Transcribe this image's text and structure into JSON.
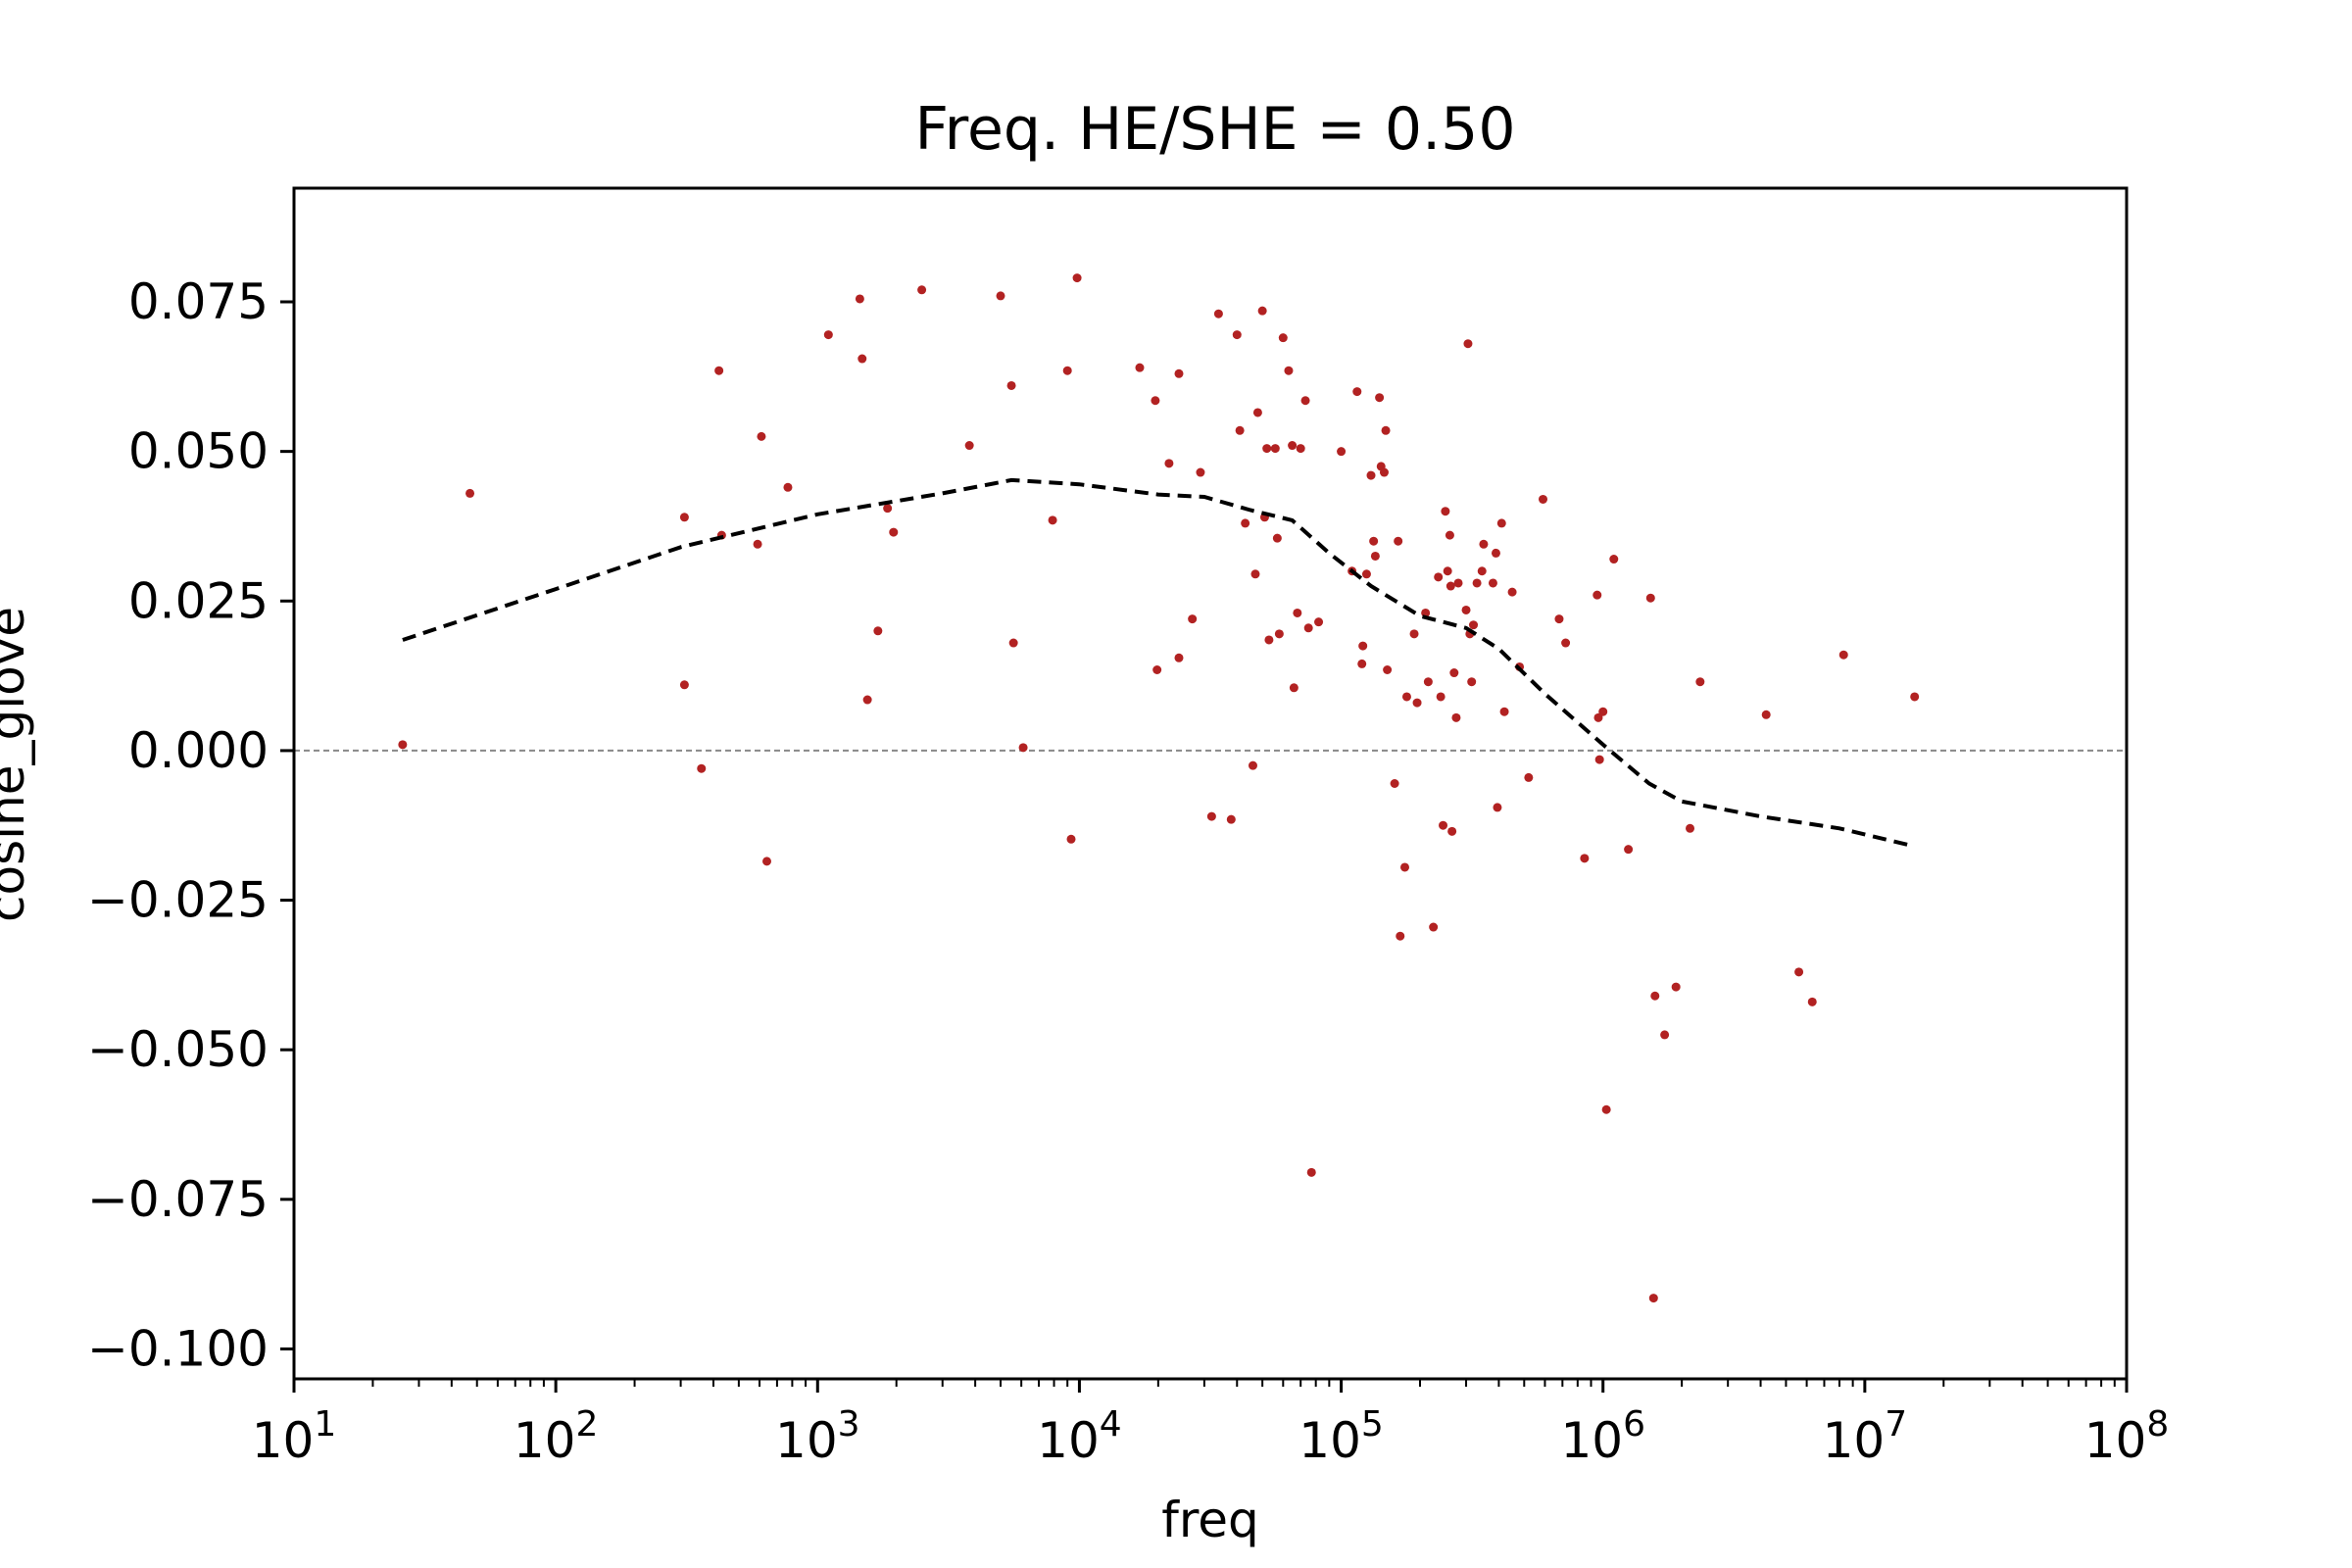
{
  "chart_data": {
    "type": "scatter",
    "title": "Freq. HE/SHE = 0.50",
    "xlabel": "freq",
    "ylabel": "cosine_glove",
    "xscale": "log",
    "xlim": [
      10,
      100000000
    ],
    "ylim": [
      -0.105,
      0.094
    ],
    "x_ticks": [
      {
        "value": 10,
        "base": "10",
        "exp": "1"
      },
      {
        "value": 100,
        "base": "10",
        "exp": "2"
      },
      {
        "value": 1000,
        "base": "10",
        "exp": "3"
      },
      {
        "value": 10000,
        "base": "10",
        "exp": "4"
      },
      {
        "value": 100000,
        "base": "10",
        "exp": "5"
      },
      {
        "value": 1000000,
        "base": "10",
        "exp": "6"
      },
      {
        "value": 10000000,
        "base": "10",
        "exp": "7"
      },
      {
        "value": 100000000,
        "base": "10",
        "exp": "8"
      }
    ],
    "y_ticks": [
      {
        "value": 0.075,
        "label": "0.075"
      },
      {
        "value": 0.05,
        "label": "0.050"
      },
      {
        "value": 0.025,
        "label": "0.025"
      },
      {
        "value": 0.0,
        "label": "0.000"
      },
      {
        "value": -0.025,
        "label": "−0.025"
      },
      {
        "value": -0.05,
        "label": "−0.050"
      },
      {
        "value": -0.075,
        "label": "−0.075"
      },
      {
        "value": -0.1,
        "label": "−0.100"
      }
    ],
    "reference_line": {
      "y": 0,
      "style": "dashed",
      "color": "#888888"
    },
    "series": [
      {
        "kind": "points",
        "color": "#b22222",
        "points": [
          [
            26,
            0.001
          ],
          [
            47,
            0.043
          ],
          [
            310,
            0.039
          ],
          [
            310,
            0.011
          ],
          [
            360,
            -0.003
          ],
          [
            420,
            0.0635
          ],
          [
            430,
            0.036
          ],
          [
            590,
            0.0345
          ],
          [
            610,
            0.0525
          ],
          [
            640,
            -0.0185
          ],
          [
            770,
            0.044
          ],
          [
            1100,
            0.0695
          ],
          [
            1450,
            0.0755
          ],
          [
            1480,
            0.0655
          ],
          [
            1550,
            0.0085
          ],
          [
            1700,
            0.02
          ],
          [
            1850,
            0.0405
          ],
          [
            1950,
            0.0365
          ],
          [
            2500,
            0.077
          ],
          [
            3800,
            0.051
          ],
          [
            5000,
            0.076
          ],
          [
            5500,
            0.061
          ],
          [
            5600,
            0.018
          ],
          [
            6100,
            0.0005
          ],
          [
            7900,
            0.0385
          ],
          [
            9000,
            0.0635
          ],
          [
            9300,
            -0.0148
          ],
          [
            9800,
            0.079
          ],
          [
            17000,
            0.064
          ],
          [
            19500,
            0.0585
          ],
          [
            19800,
            0.0135
          ],
          [
            22000,
            0.048
          ],
          [
            24000,
            0.063
          ],
          [
            24000,
            0.0155
          ],
          [
            27000,
            0.022
          ],
          [
            29000,
            0.0465
          ],
          [
            32000,
            -0.011
          ],
          [
            34000,
            0.073
          ],
          [
            38000,
            -0.0115
          ],
          [
            40000,
            0.0695
          ],
          [
            41000,
            0.0535
          ],
          [
            43000,
            0.038
          ],
          [
            46000,
            -0.0025
          ],
          [
            47000,
            0.0295
          ],
          [
            48000,
            0.0565
          ],
          [
            50000,
            0.0735
          ],
          [
            51000,
            0.039
          ],
          [
            52000,
            0.0505
          ],
          [
            53000,
            0.0185
          ],
          [
            56000,
            0.0505
          ],
          [
            57000,
            0.0355
          ],
          [
            58000,
            0.0195
          ],
          [
            60000,
            0.069
          ],
          [
            63000,
            0.0635
          ],
          [
            65000,
            0.051
          ],
          [
            66000,
            0.0105
          ],
          [
            68000,
            0.023
          ],
          [
            70000,
            0.0505
          ],
          [
            73000,
            0.0585
          ],
          [
            75000,
            0.0205
          ],
          [
            77000,
            -0.0705
          ],
          [
            82000,
            0.0215
          ],
          [
            100000,
            0.05
          ],
          [
            110000,
            0.03
          ],
          [
            115000,
            0.06
          ],
          [
            120000,
            0.0145
          ],
          [
            121000,
            0.0175
          ],
          [
            125000,
            0.0295
          ],
          [
            130000,
            0.046
          ],
          [
            133000,
            0.035
          ],
          [
            135000,
            0.0325
          ],
          [
            140000,
            0.059
          ],
          [
            142000,
            0.0475
          ],
          [
            146000,
            0.0465
          ],
          [
            148000,
            0.0535
          ],
          [
            150000,
            0.0135
          ],
          [
            160000,
            -0.0055
          ],
          [
            165000,
            0.035
          ],
          [
            168000,
            -0.031
          ],
          [
            175000,
            -0.0195
          ],
          [
            178000,
            0.009
          ],
          [
            190000,
            0.0195
          ],
          [
            195000,
            0.008
          ],
          [
            210000,
            0.023
          ],
          [
            215000,
            0.0115
          ],
          [
            225000,
            -0.0295
          ],
          [
            235000,
            0.029
          ],
          [
            240000,
            0.009
          ],
          [
            245000,
            -0.0125
          ],
          [
            250000,
            0.04
          ],
          [
            255000,
            0.03
          ],
          [
            260000,
            0.036
          ],
          [
            262000,
            0.0275
          ],
          [
            265000,
            -0.0135
          ],
          [
            270000,
            0.013
          ],
          [
            275000,
            0.0055
          ],
          [
            280000,
            0.028
          ],
          [
            300000,
            0.0235
          ],
          [
            305000,
            0.068
          ],
          [
            310000,
            0.0195
          ],
          [
            315000,
            0.0115
          ],
          [
            320000,
            0.021
          ],
          [
            330000,
            0.028
          ],
          [
            345000,
            0.03
          ],
          [
            350000,
            0.0345
          ],
          [
            380000,
            0.028
          ],
          [
            390000,
            0.033
          ],
          [
            395000,
            -0.0095
          ],
          [
            410000,
            0.038
          ],
          [
            420000,
            0.0065
          ],
          [
            450000,
            0.0265
          ],
          [
            480000,
            0.014
          ],
          [
            520000,
            -0.0045
          ],
          [
            590000,
            0.042
          ],
          [
            680000,
            0.022
          ],
          [
            720000,
            0.018
          ],
          [
            850000,
            -0.018
          ],
          [
            950000,
            0.026
          ],
          [
            960000,
            0.0055
          ],
          [
            970000,
            -0.0015
          ],
          [
            1000000,
            0.0065
          ],
          [
            1030000,
            -0.06
          ],
          [
            1100000,
            0.032
          ],
          [
            1250000,
            -0.0165
          ],
          [
            1520000,
            0.0255
          ],
          [
            1560000,
            -0.0915
          ],
          [
            1580000,
            -0.041
          ],
          [
            1720000,
            -0.0475
          ],
          [
            1900000,
            -0.0395
          ],
          [
            2150000,
            -0.013
          ],
          [
            2350000,
            0.0115
          ],
          [
            4200000,
            0.006
          ],
          [
            5600000,
            -0.037
          ],
          [
            6300000,
            -0.042
          ],
          [
            8300000,
            0.016
          ],
          [
            15500000,
            0.009
          ]
        ]
      },
      {
        "kind": "trend",
        "color": "#000000",
        "style": "dashed",
        "points": [
          [
            26,
            0.0185
          ],
          [
            100,
            0.027
          ],
          [
            300,
            0.034
          ],
          [
            1000,
            0.0395
          ],
          [
            3000,
            0.043
          ],
          [
            5500,
            0.0452
          ],
          [
            10000,
            0.0445
          ],
          [
            20000,
            0.0428
          ],
          [
            30000,
            0.0424
          ],
          [
            45000,
            0.0402
          ],
          [
            65000,
            0.0385
          ],
          [
            90000,
            0.033
          ],
          [
            130000,
            0.0275
          ],
          [
            200000,
            0.0225
          ],
          [
            300000,
            0.0205
          ],
          [
            400000,
            0.017
          ],
          [
            600000,
            0.0095
          ],
          [
            1000000,
            0.001
          ],
          [
            1500000,
            -0.0055
          ],
          [
            2000000,
            -0.0085
          ],
          [
            4000000,
            -0.011
          ],
          [
            8000000,
            -0.013
          ],
          [
            15500000,
            -0.016
          ]
        ]
      }
    ]
  }
}
